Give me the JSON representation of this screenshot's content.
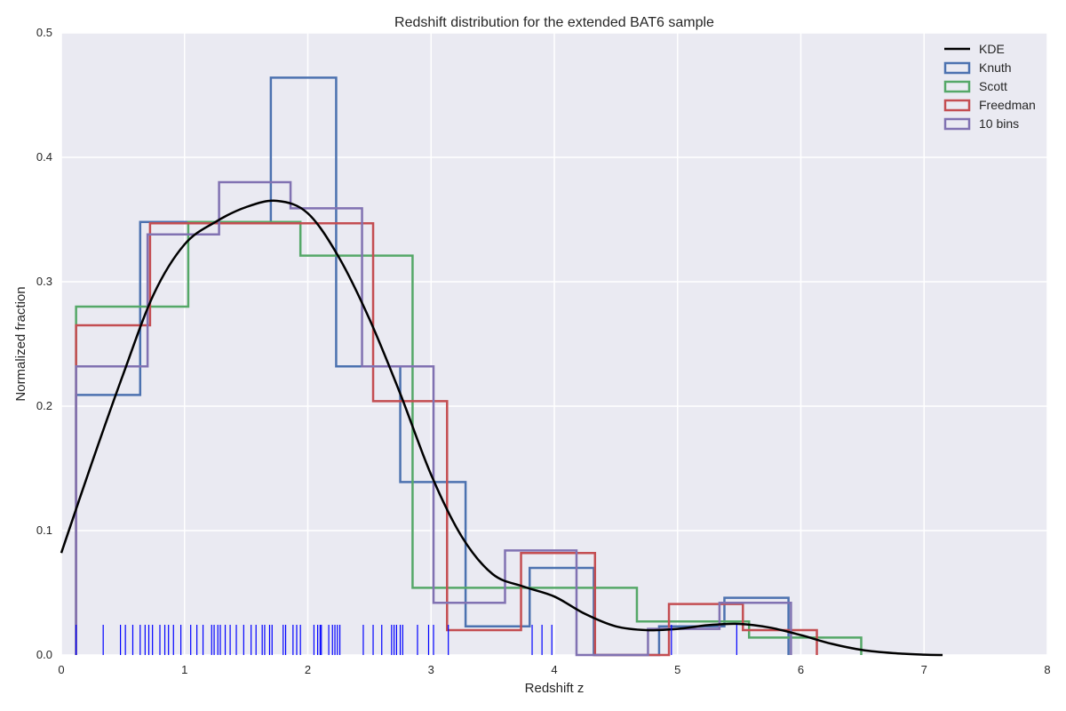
{
  "chart_data": {
    "type": "histogram",
    "title": "Redshift distribution for the extended BAT6 sample",
    "xlabel": "Redshift z",
    "ylabel": "Normalized fraction",
    "xlim": [
      0,
      8
    ],
    "ylim": [
      0,
      0.5
    ],
    "xticks": [
      "0",
      "1",
      "2",
      "3",
      "4",
      "5",
      "6",
      "7",
      "8"
    ],
    "yticks": [
      "0.0",
      "0.1",
      "0.2",
      "0.3",
      "0.4",
      "0.5"
    ],
    "grid": true,
    "legend_position": "top-right",
    "colors": {
      "background": "#eaeaf2",
      "grid": "#ffffff",
      "kde": "#000000",
      "knuth": "#4c72b0",
      "scott": "#55a868",
      "freedman": "#c44e52",
      "ten_bins": "#8172b2",
      "rug": "#0000ff"
    },
    "kde": {
      "name": "KDE",
      "x": [
        0,
        0.25,
        0.5,
        0.75,
        1.0,
        1.25,
        1.5,
        1.75,
        2.0,
        2.25,
        2.5,
        2.75,
        3.0,
        3.25,
        3.5,
        3.75,
        4.0,
        4.25,
        4.5,
        4.75,
        5.0,
        5.25,
        5.5,
        5.75,
        6.0,
        6.25,
        6.5,
        6.75,
        7.0,
        7.15
      ],
      "y": [
        0.082,
        0.155,
        0.225,
        0.29,
        0.33,
        0.348,
        0.36,
        0.365,
        0.355,
        0.32,
        0.27,
        0.21,
        0.145,
        0.095,
        0.065,
        0.055,
        0.047,
        0.033,
        0.023,
        0.02,
        0.021,
        0.024,
        0.025,
        0.022,
        0.016,
        0.009,
        0.004,
        0.0015,
        0.0003,
        0.0
      ]
    },
    "series": [
      {
        "name": "Knuth",
        "color": "#4c72b0",
        "edges": [
          0.12,
          0.64,
          1.7,
          2.23,
          2.75,
          3.28,
          3.8,
          4.32,
          4.85,
          5.38,
          5.9
        ],
        "values": [
          0.209,
          0.348,
          0.464,
          0.232,
          0.139,
          0.023,
          0.07,
          0.0,
          0.023,
          0.046
        ]
      },
      {
        "name": "Scott",
        "color": "#55a868",
        "edges": [
          0.12,
          1.03,
          1.94,
          2.85,
          3.76,
          4.67,
          5.58,
          6.49
        ],
        "values": [
          0.28,
          0.348,
          0.321,
          0.054,
          0.054,
          0.027,
          0.014
        ]
      },
      {
        "name": "Freedman",
        "color": "#c44e52",
        "edges": [
          0.12,
          0.72,
          1.33,
          1.93,
          2.53,
          3.13,
          3.73,
          4.33,
          4.93,
          5.53,
          6.13
        ],
        "values": [
          0.265,
          0.347,
          0.347,
          0.347,
          0.204,
          0.02,
          0.082,
          0.0,
          0.041,
          0.02
        ]
      },
      {
        "name": "10 bins",
        "color": "#8172b2",
        "edges": [
          0.12,
          0.7,
          1.28,
          1.86,
          2.44,
          3.02,
          3.6,
          4.18,
          4.76,
          5.34,
          5.92
        ],
        "values": [
          0.232,
          0.338,
          0.38,
          0.359,
          0.232,
          0.042,
          0.084,
          0.0,
          0.021,
          0.042
        ]
      }
    ],
    "rug": [
      0.12,
      0.34,
      0.48,
      0.52,
      0.58,
      0.64,
      0.68,
      0.71,
      0.74,
      0.8,
      0.84,
      0.87,
      0.91,
      0.97,
      1.05,
      1.1,
      1.15,
      1.22,
      1.24,
      1.27,
      1.29,
      1.33,
      1.37,
      1.42,
      1.48,
      1.54,
      1.58,
      1.63,
      1.65,
      1.69,
      1.71,
      1.8,
      1.82,
      1.88,
      1.91,
      1.94,
      2.05,
      2.08,
      2.1,
      2.11,
      2.17,
      2.2,
      2.22,
      2.24,
      2.26,
      2.45,
      2.53,
      2.6,
      2.68,
      2.7,
      2.72,
      2.75,
      2.77,
      2.89,
      2.98,
      3.02,
      3.14,
      3.82,
      3.9,
      3.98,
      4.95,
      5.48
    ]
  }
}
